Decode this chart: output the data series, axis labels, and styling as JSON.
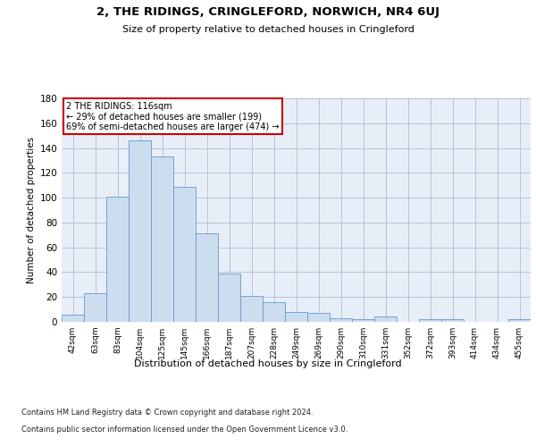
{
  "title": "2, THE RIDINGS, CRINGLEFORD, NORWICH, NR4 6UJ",
  "subtitle": "Size of property relative to detached houses in Cringleford",
  "xlabel": "Distribution of detached houses by size in Cringleford",
  "ylabel": "Number of detached properties",
  "bar_color": "#ccddf0",
  "bar_edge_color": "#6699cc",
  "background_color": "#ffffff",
  "plot_bg_color": "#e8eef8",
  "grid_color": "#b0bcd0",
  "annotation_line1": "2 THE RIDINGS: 116sqm",
  "annotation_line2": "← 29% of detached houses are smaller (199)",
  "annotation_line3": "69% of semi-detached houses are larger (474) →",
  "annotation_box_color": "#ffffff",
  "annotation_border_color": "#cc0000",
  "categories": [
    "42sqm",
    "63sqm",
    "83sqm",
    "104sqm",
    "125sqm",
    "145sqm",
    "166sqm",
    "187sqm",
    "207sqm",
    "228sqm",
    "249sqm",
    "269sqm",
    "290sqm",
    "310sqm",
    "331sqm",
    "352sqm",
    "372sqm",
    "393sqm",
    "414sqm",
    "434sqm",
    "455sqm"
  ],
  "values": [
    6,
    23,
    101,
    146,
    133,
    109,
    71,
    39,
    21,
    16,
    8,
    7,
    3,
    2,
    4,
    0,
    2,
    2,
    0,
    0,
    2
  ],
  "ylim": [
    0,
    180
  ],
  "yticks": [
    0,
    20,
    40,
    60,
    80,
    100,
    120,
    140,
    160,
    180
  ],
  "footnote_line1": "Contains HM Land Registry data © Crown copyright and database right 2024.",
  "footnote_line2": "Contains public sector information licensed under the Open Government Licence v3.0."
}
